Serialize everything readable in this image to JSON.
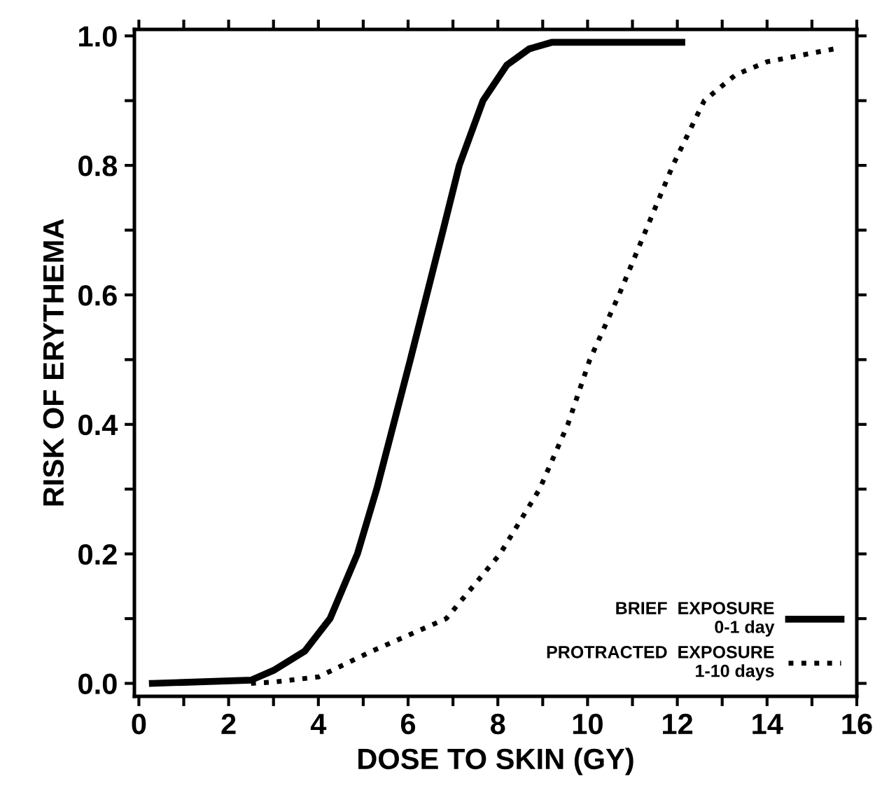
{
  "chart_data": {
    "type": "line",
    "xlabel": "DOSE TO SKIN (GY)",
    "ylabel": "RISK OF ERYTHEMA",
    "xlim": [
      -0.1,
      16
    ],
    "ylim": [
      -0.02,
      1.01
    ],
    "xticks": [
      0,
      {
        "value": 1,
        "label": null
      },
      2,
      {
        "value": 3,
        "label": null
      },
      4,
      {
        "value": 5,
        "label": null
      },
      6,
      {
        "value": 7,
        "label": null
      },
      8,
      {
        "value": 9,
        "label": null
      },
      10,
      {
        "value": 11,
        "label": null
      },
      12,
      {
        "value": 13,
        "label": null
      },
      14,
      {
        "value": 15,
        "label": null
      },
      16
    ],
    "yticks": [
      {
        "value": 0,
        "label": "0.0"
      },
      {
        "value": 0.1,
        "label": null
      },
      0.2,
      {
        "value": 0.3,
        "label": null
      },
      0.4,
      {
        "value": 0.5,
        "label": null
      },
      0.6,
      {
        "value": 0.7,
        "label": null
      },
      0.8,
      {
        "value": 0.9,
        "label": null
      },
      {
        "value": 1,
        "label": "1.0"
      }
    ],
    "grid": false,
    "legend": "bottom right",
    "marker": "none",
    "series": [
      {
        "name": "BRIEF  EXPOSURE\n0-1 day",
        "color": "#000000",
        "line_style": "solid",
        "x": [
          0.3,
          2.5,
          3,
          3.7,
          4.26,
          4.87,
          5.3,
          6.05,
          6.78,
          7.14,
          7.67,
          8.2,
          8.7,
          9.2,
          12.1
        ],
        "values": [
          0.0,
          0.005,
          0.02,
          0.05,
          0.1,
          0.2,
          0.3,
          0.5,
          0.7,
          0.8,
          0.9,
          0.955,
          0.98,
          0.99,
          0.99
        ]
      },
      {
        "name": "PROTRACTED  EXPOSURE\n1-10 days",
        "color": "#000000",
        "line_style": "dotted",
        "x": [
          2.5,
          3,
          4,
          5.2,
          6.85,
          8.05,
          8.93,
          9.56,
          10.05,
          10.7,
          11.3,
          11.9,
          12.6,
          13.3,
          14,
          15.5
        ],
        "values": [
          0.0,
          0.002,
          0.01,
          0.05,
          0.1,
          0.2,
          0.3,
          0.4,
          0.5,
          0.6,
          0.7,
          0.8,
          0.9,
          0.94,
          0.96,
          0.98
        ]
      }
    ]
  }
}
